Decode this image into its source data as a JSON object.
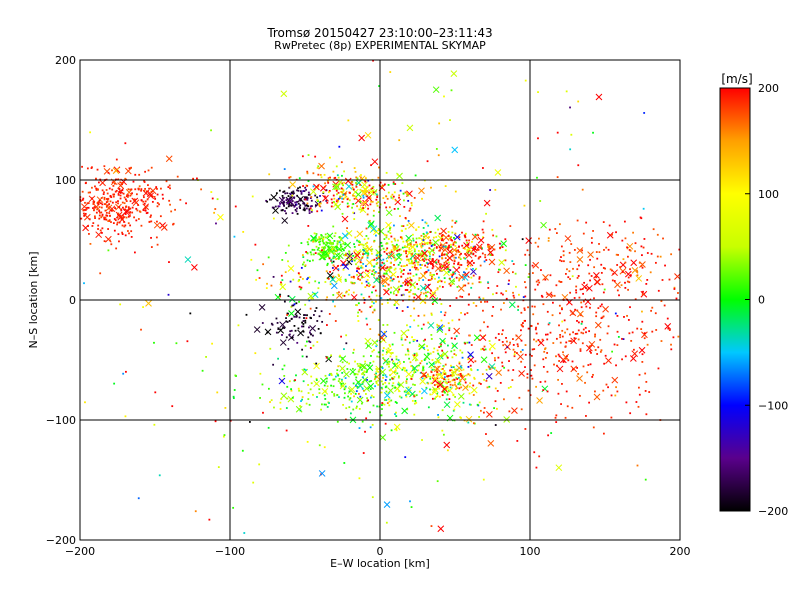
{
  "chart_data": {
    "type": "scatter",
    "title": "Tromsø 20150427 23:10:00–23:11:43",
    "subtitle": "RwPretec (8p) EXPERIMENTAL SKYMAP",
    "xlabel": "E–W location [km]",
    "ylabel": "N–S location [km]",
    "xlim": [
      -200,
      200
    ],
    "ylim": [
      -200,
      200
    ],
    "xticks": [
      -200,
      -100,
      0,
      100,
      200
    ],
    "yticks": [
      -200,
      -100,
      0,
      100,
      200
    ],
    "grid": true,
    "colorbar": {
      "label": "[m/s]",
      "range": [
        -200,
        200
      ],
      "ticks": [
        -200,
        -100,
        0,
        100,
        200
      ],
      "colormap": "rainbow: black-purple-blue-cyan-green-yellow-orange-red",
      "colors": [
        "#000000",
        "#5a008c",
        "#0000ff",
        "#00c8ff",
        "#00ff00",
        "#c8ff00",
        "#ffff00",
        "#ffa000",
        "#ff0000"
      ]
    },
    "markers": [
      "dot",
      "x"
    ],
    "clusters": [
      {
        "x": -175,
        "y": 80,
        "sx": 18,
        "sy": 15,
        "n": 380,
        "v": 190,
        "sv": 10
      },
      {
        "x": -55,
        "y": 82,
        "sx": 9,
        "sy": 6,
        "n": 140,
        "v": -180,
        "sv": 25
      },
      {
        "x": -15,
        "y": 90,
        "sx": 20,
        "sy": 10,
        "n": 260,
        "v": 120,
        "sv": 90
      },
      {
        "x": -35,
        "y": 45,
        "sx": 8,
        "sy": 6,
        "n": 140,
        "v": 20,
        "sv": 15
      },
      {
        "x": 20,
        "y": 45,
        "sx": 25,
        "sy": 10,
        "n": 260,
        "v": 60,
        "sv": 60
      },
      {
        "x": 50,
        "y": 40,
        "sx": 15,
        "sy": 8,
        "n": 150,
        "v": 190,
        "sv": 15
      },
      {
        "x": 10,
        "y": 20,
        "sx": 35,
        "sy": 15,
        "n": 520,
        "v": 100,
        "sv": 110
      },
      {
        "x": -55,
        "y": -20,
        "sx": 10,
        "sy": 12,
        "n": 90,
        "v": -190,
        "sv": 15
      },
      {
        "x": -20,
        "y": -70,
        "sx": 25,
        "sy": 15,
        "n": 280,
        "v": 30,
        "sv": 40
      },
      {
        "x": 30,
        "y": -60,
        "sx": 25,
        "sy": 20,
        "n": 350,
        "v": 50,
        "sv": 60
      },
      {
        "x": 45,
        "y": -65,
        "sx": 8,
        "sy": 6,
        "n": 90,
        "v": 150,
        "sv": 60
      },
      {
        "x": 120,
        "y": -30,
        "sx": 40,
        "sy": 35,
        "n": 450,
        "v": 190,
        "sv": 15
      },
      {
        "x": 150,
        "y": 30,
        "sx": 30,
        "sy": 20,
        "n": 140,
        "v": 190,
        "sv": 20
      },
      {
        "x": 0,
        "y": 0,
        "sx": 100,
        "sy": 100,
        "n": 350,
        "v": 100,
        "sv": 140
      }
    ]
  }
}
